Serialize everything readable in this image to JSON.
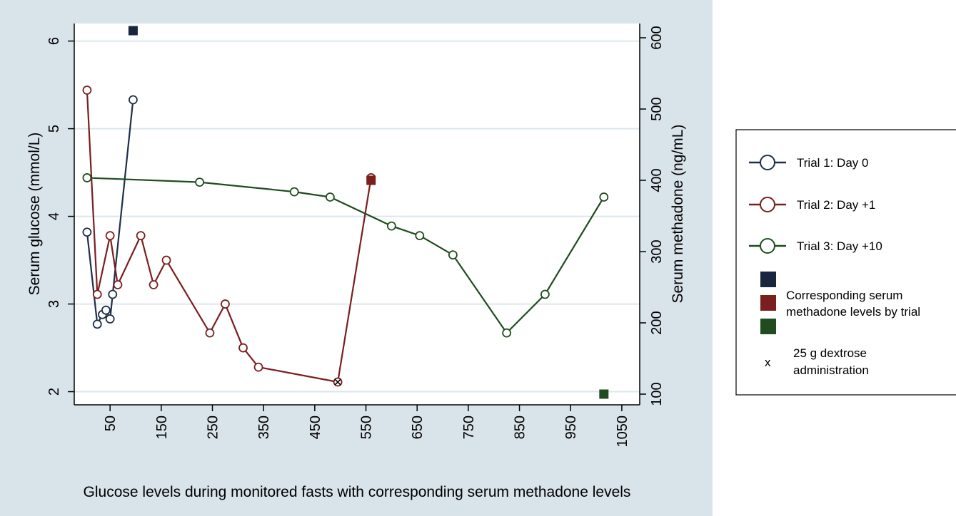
{
  "chart_data": {
    "type": "line",
    "xlabel": "Glucose levels during monitored fasts with corresponding serum methadone levels",
    "ylabel": "Serum glucose (mmol/L)",
    "y2label": "Serum methadone (ng/mL)",
    "xlim": [
      -20,
      1085
    ],
    "ylim": [
      1.85,
      6.2
    ],
    "y2lim": [
      85,
      620
    ],
    "x_ticks": [
      50,
      150,
      250,
      350,
      450,
      550,
      650,
      750,
      850,
      950,
      1050
    ],
    "y_ticks": [
      2,
      3,
      4,
      5,
      6
    ],
    "y2_ticks": [
      100,
      200,
      300,
      400,
      500,
      600
    ],
    "grid": true,
    "legend_position": "right",
    "series": [
      {
        "name": "Trial 1: Day 0",
        "color": "#1f2f4a",
        "x": [
          5,
          25,
          35,
          42,
          50,
          55,
          95
        ],
        "y": [
          3.82,
          2.77,
          2.88,
          2.93,
          2.83,
          3.11,
          5.33
        ]
      },
      {
        "name": "Trial 2: Day +1",
        "color": "#7a1e1e",
        "x": [
          5,
          25,
          50,
          65,
          110,
          135,
          160,
          245,
          275,
          310,
          340,
          495,
          560
        ],
        "y": [
          5.44,
          3.11,
          3.78,
          3.22,
          3.78,
          3.22,
          3.5,
          2.67,
          3.0,
          2.5,
          2.28,
          2.11,
          4.44
        ]
      },
      {
        "name": "Trial 3: Day +10",
        "color": "#1f4d1f",
        "x": [
          5,
          225,
          410,
          480,
          600,
          655,
          720,
          825,
          900,
          1015
        ],
        "y": [
          4.44,
          4.39,
          4.28,
          4.22,
          3.89,
          3.78,
          3.56,
          2.67,
          3.11,
          4.22
        ]
      }
    ],
    "methadone_levels": {
      "name": "Corresponding serum methadone levels by trial",
      "points": [
        {
          "trial": "Trial 1: Day 0",
          "x": 95,
          "y": 610,
          "color": "#1a2540"
        },
        {
          "trial": "Trial 2: Day +1",
          "x": 560,
          "y": 400,
          "color": "#7a1e1e"
        },
        {
          "trial": "Trial 3: Day +10",
          "x": 1015,
          "y": 100,
          "color": "#1f4d1f"
        }
      ]
    },
    "dextrose_marker": {
      "symbol": "x",
      "label": "25 g dextrose administration",
      "points": [
        {
          "x": 495,
          "y": 2.11
        }
      ]
    },
    "legend": {
      "entries": [
        {
          "label": "Trial 1: Day 0",
          "color": "#1f2f4a"
        },
        {
          "label": "Trial 2: Day +1",
          "color": "#7a1e1e"
        },
        {
          "label": "Trial 3: Day +10",
          "color": "#1f4d1f"
        }
      ],
      "methadone_label": [
        "Corresponding serum",
        "methadone levels by trial"
      ],
      "dextrose_symbol": "x",
      "dextrose_label": [
        "25 g dextrose",
        "administration"
      ]
    },
    "colors": {
      "outer_background": "#d9e3ea",
      "plot_background": "#ffffff",
      "grid": "#dde6ec"
    }
  }
}
